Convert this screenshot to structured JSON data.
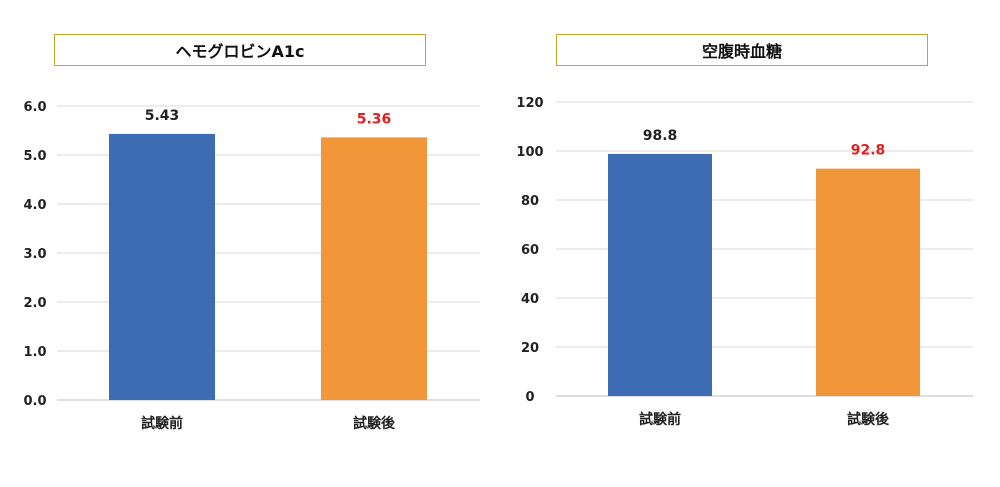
{
  "chart_data": [
    {
      "type": "bar",
      "title": "ヘモグロビンA1c",
      "categories": [
        "試験前",
        "試験後"
      ],
      "values": [
        5.43,
        5.36
      ],
      "data_labels": [
        "5.43",
        "5.36"
      ],
      "ylim": [
        0,
        6
      ],
      "yticks": [
        "0.0",
        "1.0",
        "2.0",
        "3.0",
        "4.0",
        "5.0",
        "6.0"
      ],
      "grid": true,
      "bar_colors": [
        "#3e6cb4",
        "#f2963a"
      ],
      "label_colors": [
        "#222222",
        "#e02020"
      ]
    },
    {
      "type": "bar",
      "title": "空腹時血糖",
      "categories": [
        "試験前",
        "試験後"
      ],
      "values": [
        98.8,
        92.8
      ],
      "data_labels": [
        "98.8",
        "92.8"
      ],
      "ylim": [
        0,
        120
      ],
      "yticks": [
        "0",
        "20",
        "40",
        "60",
        "80",
        "100",
        "120"
      ],
      "grid": true,
      "bar_colors": [
        "#3e6cb4",
        "#f2963a"
      ],
      "label_colors": [
        "#222222",
        "#e02020"
      ]
    }
  ]
}
